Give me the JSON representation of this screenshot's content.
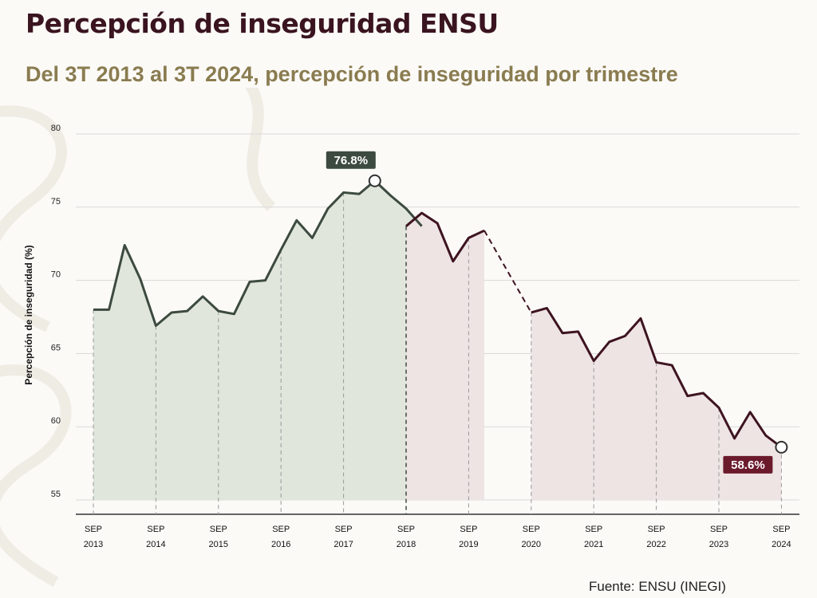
{
  "title": "Percepción de inseguridad ENSU",
  "subtitle": "Del 3T 2013 al 3T 2024, percepción de inseguridad por trimestre",
  "source": "Fuente: ENSU (INEGI)",
  "colors": {
    "title": "#3a1420",
    "subtitle": "#8a7c50",
    "line_green": "#3d4a3f",
    "line_maroon": "#3e1420",
    "fill_green": "#e0e6dc",
    "fill_maroon": "#eee4e4",
    "label_green_bg": "#3d4a3f",
    "label_maroon_bg": "#6b1a2c"
  },
  "chart_data": {
    "type": "line",
    "ylabel": "Percepción de inseguridad (%)",
    "ylim": [
      55,
      80
    ],
    "yticks": [
      55,
      60,
      65,
      70,
      75,
      80
    ],
    "grid": true,
    "xtick_labels": [
      {
        "month": "SEP",
        "year": "2013",
        "index": 0
      },
      {
        "month": "SEP",
        "year": "2014",
        "index": 4
      },
      {
        "month": "SEP",
        "year": "2015",
        "index": 8
      },
      {
        "month": "SEP",
        "year": "2016",
        "index": 12
      },
      {
        "month": "SEP",
        "year": "2017",
        "index": 16
      },
      {
        "month": "SEP",
        "year": "2018",
        "index": 20
      },
      {
        "month": "SEP",
        "year": "2019",
        "index": 24
      },
      {
        "month": "SEP",
        "year": "2020",
        "index": 28
      },
      {
        "month": "SEP",
        "year": "2021",
        "index": 32
      },
      {
        "month": "SEP",
        "year": "2022",
        "index": 36
      },
      {
        "month": "SEP",
        "year": "2023",
        "index": 40
      },
      {
        "month": "SEP",
        "year": "2024",
        "index": 44
      }
    ],
    "series": [
      {
        "period": "green",
        "start_index": 0,
        "values": [
          68.0,
          68.0,
          72.4,
          70.1,
          66.9,
          67.8,
          67.9,
          68.9,
          67.9,
          67.7,
          69.9,
          70.0,
          72.1,
          74.1,
          72.9,
          74.9,
          76.0,
          75.9,
          76.8,
          75.8,
          74.9,
          73.7
        ]
      },
      {
        "period": "maroon",
        "start_index": 20,
        "values": [
          73.7,
          74.6,
          73.9,
          71.3,
          72.9,
          73.4
        ]
      },
      {
        "period": "maroon",
        "start_index": 28,
        "values": [
          67.8,
          68.1,
          66.4,
          66.5,
          64.5,
          65.8,
          66.2,
          67.4,
          64.4,
          64.2,
          62.1,
          62.3,
          61.3,
          59.2,
          61.0,
          59.4,
          58.6
        ]
      }
    ],
    "gap": {
      "from_index": 25,
      "to_index": 28,
      "from_value": 73.4,
      "to_value": 67.8
    },
    "annotations": [
      {
        "label": "76.8%",
        "index": 18,
        "value": 76.8,
        "style": "green"
      },
      {
        "label": "58.6%",
        "index": 44,
        "value": 58.6,
        "style": "maroon"
      }
    ]
  }
}
